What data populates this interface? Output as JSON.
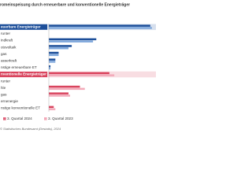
{
  "chart_data": {
    "type": "hbar",
    "title": "romeinspeisung durch erneuerbare und konventionelle Energieträger",
    "categories": [
      "euerbare Energieträger",
      "runter",
      "indkraft",
      "otovoltaik",
      "gas",
      "asserkraft",
      "nstige erneuerbare ET",
      "nventionelle Energieträger",
      "runter",
      "hle",
      "gas",
      "ernenergie",
      "nstige konventionelle ET"
    ],
    "header_rows": [
      0,
      7
    ],
    "series": [
      {
        "name": "3. Quartal 2024",
        "color": "#e0637c",
        "colors": [
          "#1d4f9a",
          null,
          "#1d4f9a",
          "#1d4f9a",
          "#1d4f9a",
          "#1d4f9a",
          "#1d4f9a",
          "#d9445e",
          null,
          "#d9445e",
          "#d9445e",
          "#d9445e",
          "#d9445e"
        ],
        "values": [
          62,
          null,
          29,
          14,
          6,
          4,
          1,
          37,
          null,
          19,
          12,
          0,
          3
        ]
      },
      {
        "name": "3. Quartal 2023",
        "color": "#f3a9b9",
        "colors": [
          "#7fa8dc",
          null,
          "#7fa8dc",
          "#7fa8dc",
          "#7fa8dc",
          "#7fa8dc",
          "#7fa8dc",
          "#f3a9b9",
          null,
          "#f3a9b9",
          "#f3a9b9",
          "#f3a9b9",
          "#f3a9b9"
        ],
        "values": [
          63,
          null,
          27,
          12,
          6,
          4,
          1,
          40,
          null,
          22,
          13,
          0,
          4
        ]
      }
    ],
    "xlim": [
      0,
      64
    ],
    "source": "© Statistisches Bundesamt (Destatis), 2024"
  }
}
